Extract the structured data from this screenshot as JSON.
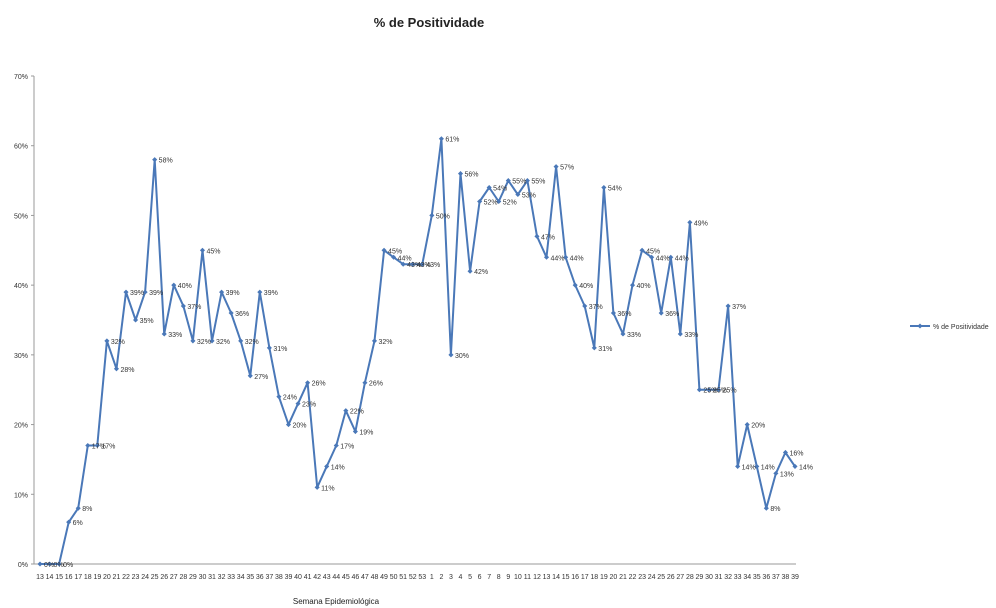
{
  "chart_data": {
    "type": "line",
    "title": "% de Positividade",
    "xlabel": "Semana Epidemiológica",
    "ylabel": "",
    "ylim": [
      0,
      70
    ],
    "y_ticks": [
      "0%",
      "10%",
      "20%",
      "30%",
      "40%",
      "50%",
      "60%",
      "70%"
    ],
    "grid": false,
    "legend_position": "right",
    "series_color": "#4a78b8",
    "categories": [
      "13",
      "14",
      "15",
      "16",
      "17",
      "18",
      "19",
      "20",
      "21",
      "22",
      "23",
      "24",
      "25",
      "26",
      "27",
      "28",
      "29",
      "30",
      "31",
      "32",
      "33",
      "34",
      "35",
      "36",
      "37",
      "38",
      "39",
      "40",
      "41",
      "42",
      "43",
      "44",
      "45",
      "46",
      "47",
      "48",
      "49",
      "50",
      "51",
      "52",
      "53",
      "1",
      "2",
      "3",
      "4",
      "5",
      "6",
      "7",
      "8",
      "9",
      "10",
      "11",
      "12",
      "13",
      "14",
      "15",
      "16",
      "17",
      "18",
      "19",
      "20",
      "21",
      "22",
      "23",
      "24",
      "25",
      "26",
      "27",
      "28",
      "29",
      "30",
      "31",
      "32",
      "33",
      "34",
      "35",
      "36",
      "37",
      "38",
      "39"
    ],
    "series": [
      {
        "name": "% de Positividade",
        "values": [
          0,
          0,
          0,
          6,
          8,
          17,
          17,
          32,
          28,
          39,
          35,
          39,
          58,
          33,
          40,
          37,
          32,
          45,
          32,
          39,
          36,
          32,
          27,
          39,
          31,
          24,
          20,
          23,
          26,
          11,
          14,
          17,
          22,
          19,
          26,
          32,
          45,
          44,
          43,
          43,
          43,
          50,
          61,
          30,
          56,
          42,
          52,
          54,
          52,
          55,
          53,
          55,
          47,
          44,
          57,
          44,
          40,
          37,
          31,
          54,
          36,
          33,
          40,
          45,
          44,
          36,
          44,
          33,
          49,
          25,
          25,
          25,
          37,
          14,
          20,
          14,
          8,
          13,
          16,
          14
        ],
        "labels": [
          "0%",
          "0%",
          "0%",
          "6%",
          "8%",
          "17%",
          "17%",
          "32%",
          "28%",
          "39%",
          "35%",
          "39%",
          "58%",
          "33%",
          "40%",
          "37%",
          "32%",
          "45%",
          "32%",
          "39%",
          "36%",
          "32%",
          "27%",
          "39%",
          "31%",
          "24%",
          "20%",
          "23%",
          "26%",
          "11%",
          "14%",
          "17%",
          "22%",
          "19%",
          "26%",
          "32%",
          "45%",
          "44%",
          "43%",
          "43%",
          "43%",
          "50%",
          "61%",
          "30%",
          "56%",
          "42%",
          "52%",
          "54%",
          "52%",
          "55%",
          "53%",
          "55%",
          "47%",
          "44%",
          "57%",
          "44%",
          "40%",
          "37%",
          "31%",
          "54%",
          "36%",
          "33%",
          "40%",
          "45%",
          "44%",
          "36%",
          "44%",
          "33%",
          "49%",
          "25%",
          "25%",
          "25%",
          "37%",
          "14%",
          "20%",
          "14%",
          "8%",
          "13%",
          "16%",
          "14%"
        ]
      }
    ]
  }
}
